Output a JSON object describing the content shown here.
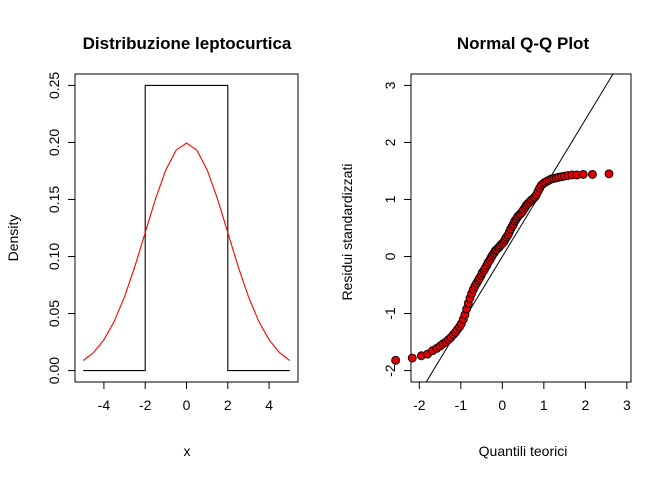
{
  "chart_data": [
    {
      "type": "line",
      "title": "Distribuzione leptocurtica",
      "xlabel": "x",
      "ylabel": "Density",
      "xlim": [
        -5,
        5
      ],
      "ylim": [
        0,
        0.25
      ],
      "xticks": [
        -4,
        -2,
        0,
        2,
        4
      ],
      "xtick_labels": [
        "-4",
        "-2",
        "0",
        "2",
        "4"
      ],
      "yticks": [
        0,
        0.05,
        0.1,
        0.15,
        0.2,
        0.25
      ],
      "ytick_labels": [
        "0.00",
        "0.05",
        "0.10",
        "0.15",
        "0.20",
        "0.25"
      ],
      "grid": false,
      "series": [
        {
          "color": "#000000",
          "x": [
            -5,
            -2,
            -2,
            2,
            2,
            5
          ],
          "y": [
            0,
            0,
            0.25,
            0.25,
            0,
            0
          ]
        },
        {
          "color": "#ff0000",
          "x": [
            -5,
            -4.5,
            -4,
            -3.5,
            -3,
            -2.5,
            -2,
            -1.5,
            -1,
            -0.5,
            0,
            0.5,
            1,
            1.5,
            2,
            2.5,
            3,
            3.5,
            4,
            4.5,
            5
          ],
          "y": [
            0.0088,
            0.0158,
            0.027,
            0.0431,
            0.0648,
            0.0913,
            0.121,
            0.1506,
            0.176,
            0.1933,
            0.1995,
            0.1933,
            0.176,
            0.1506,
            0.121,
            0.0913,
            0.0648,
            0.0431,
            0.027,
            0.0158,
            0.0088
          ]
        }
      ]
    },
    {
      "type": "scatter",
      "title": "Normal Q-Q Plot",
      "xlabel": "Quantili teorici",
      "ylabel": "Residui  standardizzati",
      "xlim": [
        -2.2,
        3.1
      ],
      "ylim": [
        -2.2,
        3.2
      ],
      "xticks": [
        -2,
        -1,
        0,
        1,
        2,
        3
      ],
      "xtick_labels": [
        "-2",
        "-1",
        "0",
        "1",
        "2",
        "3"
      ],
      "yticks": [
        -2,
        -1,
        0,
        1,
        2,
        3
      ],
      "ytick_labels": [
        "-2",
        "-1",
        "0",
        "1",
        "2",
        "3"
      ],
      "grid": false,
      "point_fill": "#e00000",
      "point_stroke": "#000000",
      "reference_line": {
        "intercept": 0,
        "slope": 1.2,
        "color": "#000000"
      },
      "series": [
        {
          "x": [
            -2.57,
            -2.17,
            -1.95,
            -1.8,
            -1.68,
            -1.58,
            -1.5,
            -1.43,
            -1.36,
            -1.3,
            -1.24,
            -1.18,
            -1.13,
            -1.08,
            -1.03,
            -0.99,
            -0.94,
            -0.9,
            -0.86,
            -0.82,
            -0.78,
            -0.74,
            -0.7,
            -0.66,
            -0.62,
            -0.58,
            -0.55,
            -0.51,
            -0.48,
            -0.44,
            -0.41,
            -0.37,
            -0.34,
            -0.3,
            -0.27,
            -0.24,
            -0.2,
            -0.17,
            -0.14,
            -0.1,
            -0.07,
            -0.04,
            0.0,
            0.04,
            0.07,
            0.1,
            0.14,
            0.17,
            0.2,
            0.24,
            0.27,
            0.3,
            0.34,
            0.37,
            0.41,
            0.44,
            0.48,
            0.51,
            0.55,
            0.58,
            0.62,
            0.66,
            0.7,
            0.74,
            0.78,
            0.82,
            0.86,
            0.9,
            0.94,
            0.99,
            1.03,
            1.08,
            1.13,
            1.18,
            1.24,
            1.3,
            1.36,
            1.43,
            1.5,
            1.58,
            1.68,
            1.8,
            1.95,
            2.17,
            2.57
          ],
          "y": [
            -1.82,
            -1.78,
            -1.74,
            -1.71,
            -1.65,
            -1.61,
            -1.57,
            -1.53,
            -1.5,
            -1.46,
            -1.42,
            -1.37,
            -1.33,
            -1.28,
            -1.23,
            -1.18,
            -1.1,
            -1.02,
            -0.92,
            -0.82,
            -0.73,
            -0.65,
            -0.58,
            -0.52,
            -0.47,
            -0.42,
            -0.38,
            -0.33,
            -0.28,
            -0.24,
            -0.2,
            -0.15,
            -0.1,
            -0.06,
            -0.02,
            0.02,
            0.06,
            0.1,
            0.12,
            0.15,
            0.17,
            0.2,
            0.23,
            0.26,
            0.3,
            0.34,
            0.38,
            0.43,
            0.48,
            0.53,
            0.57,
            0.62,
            0.66,
            0.7,
            0.73,
            0.75,
            0.78,
            0.82,
            0.86,
            0.9,
            0.93,
            0.96,
            0.99,
            1.01,
            1.04,
            1.08,
            1.14,
            1.2,
            1.25,
            1.28,
            1.3,
            1.32,
            1.34,
            1.36,
            1.37,
            1.38,
            1.39,
            1.4,
            1.41,
            1.42,
            1.43,
            1.43,
            1.44,
            1.44,
            1.45
          ]
        }
      ]
    }
  ]
}
